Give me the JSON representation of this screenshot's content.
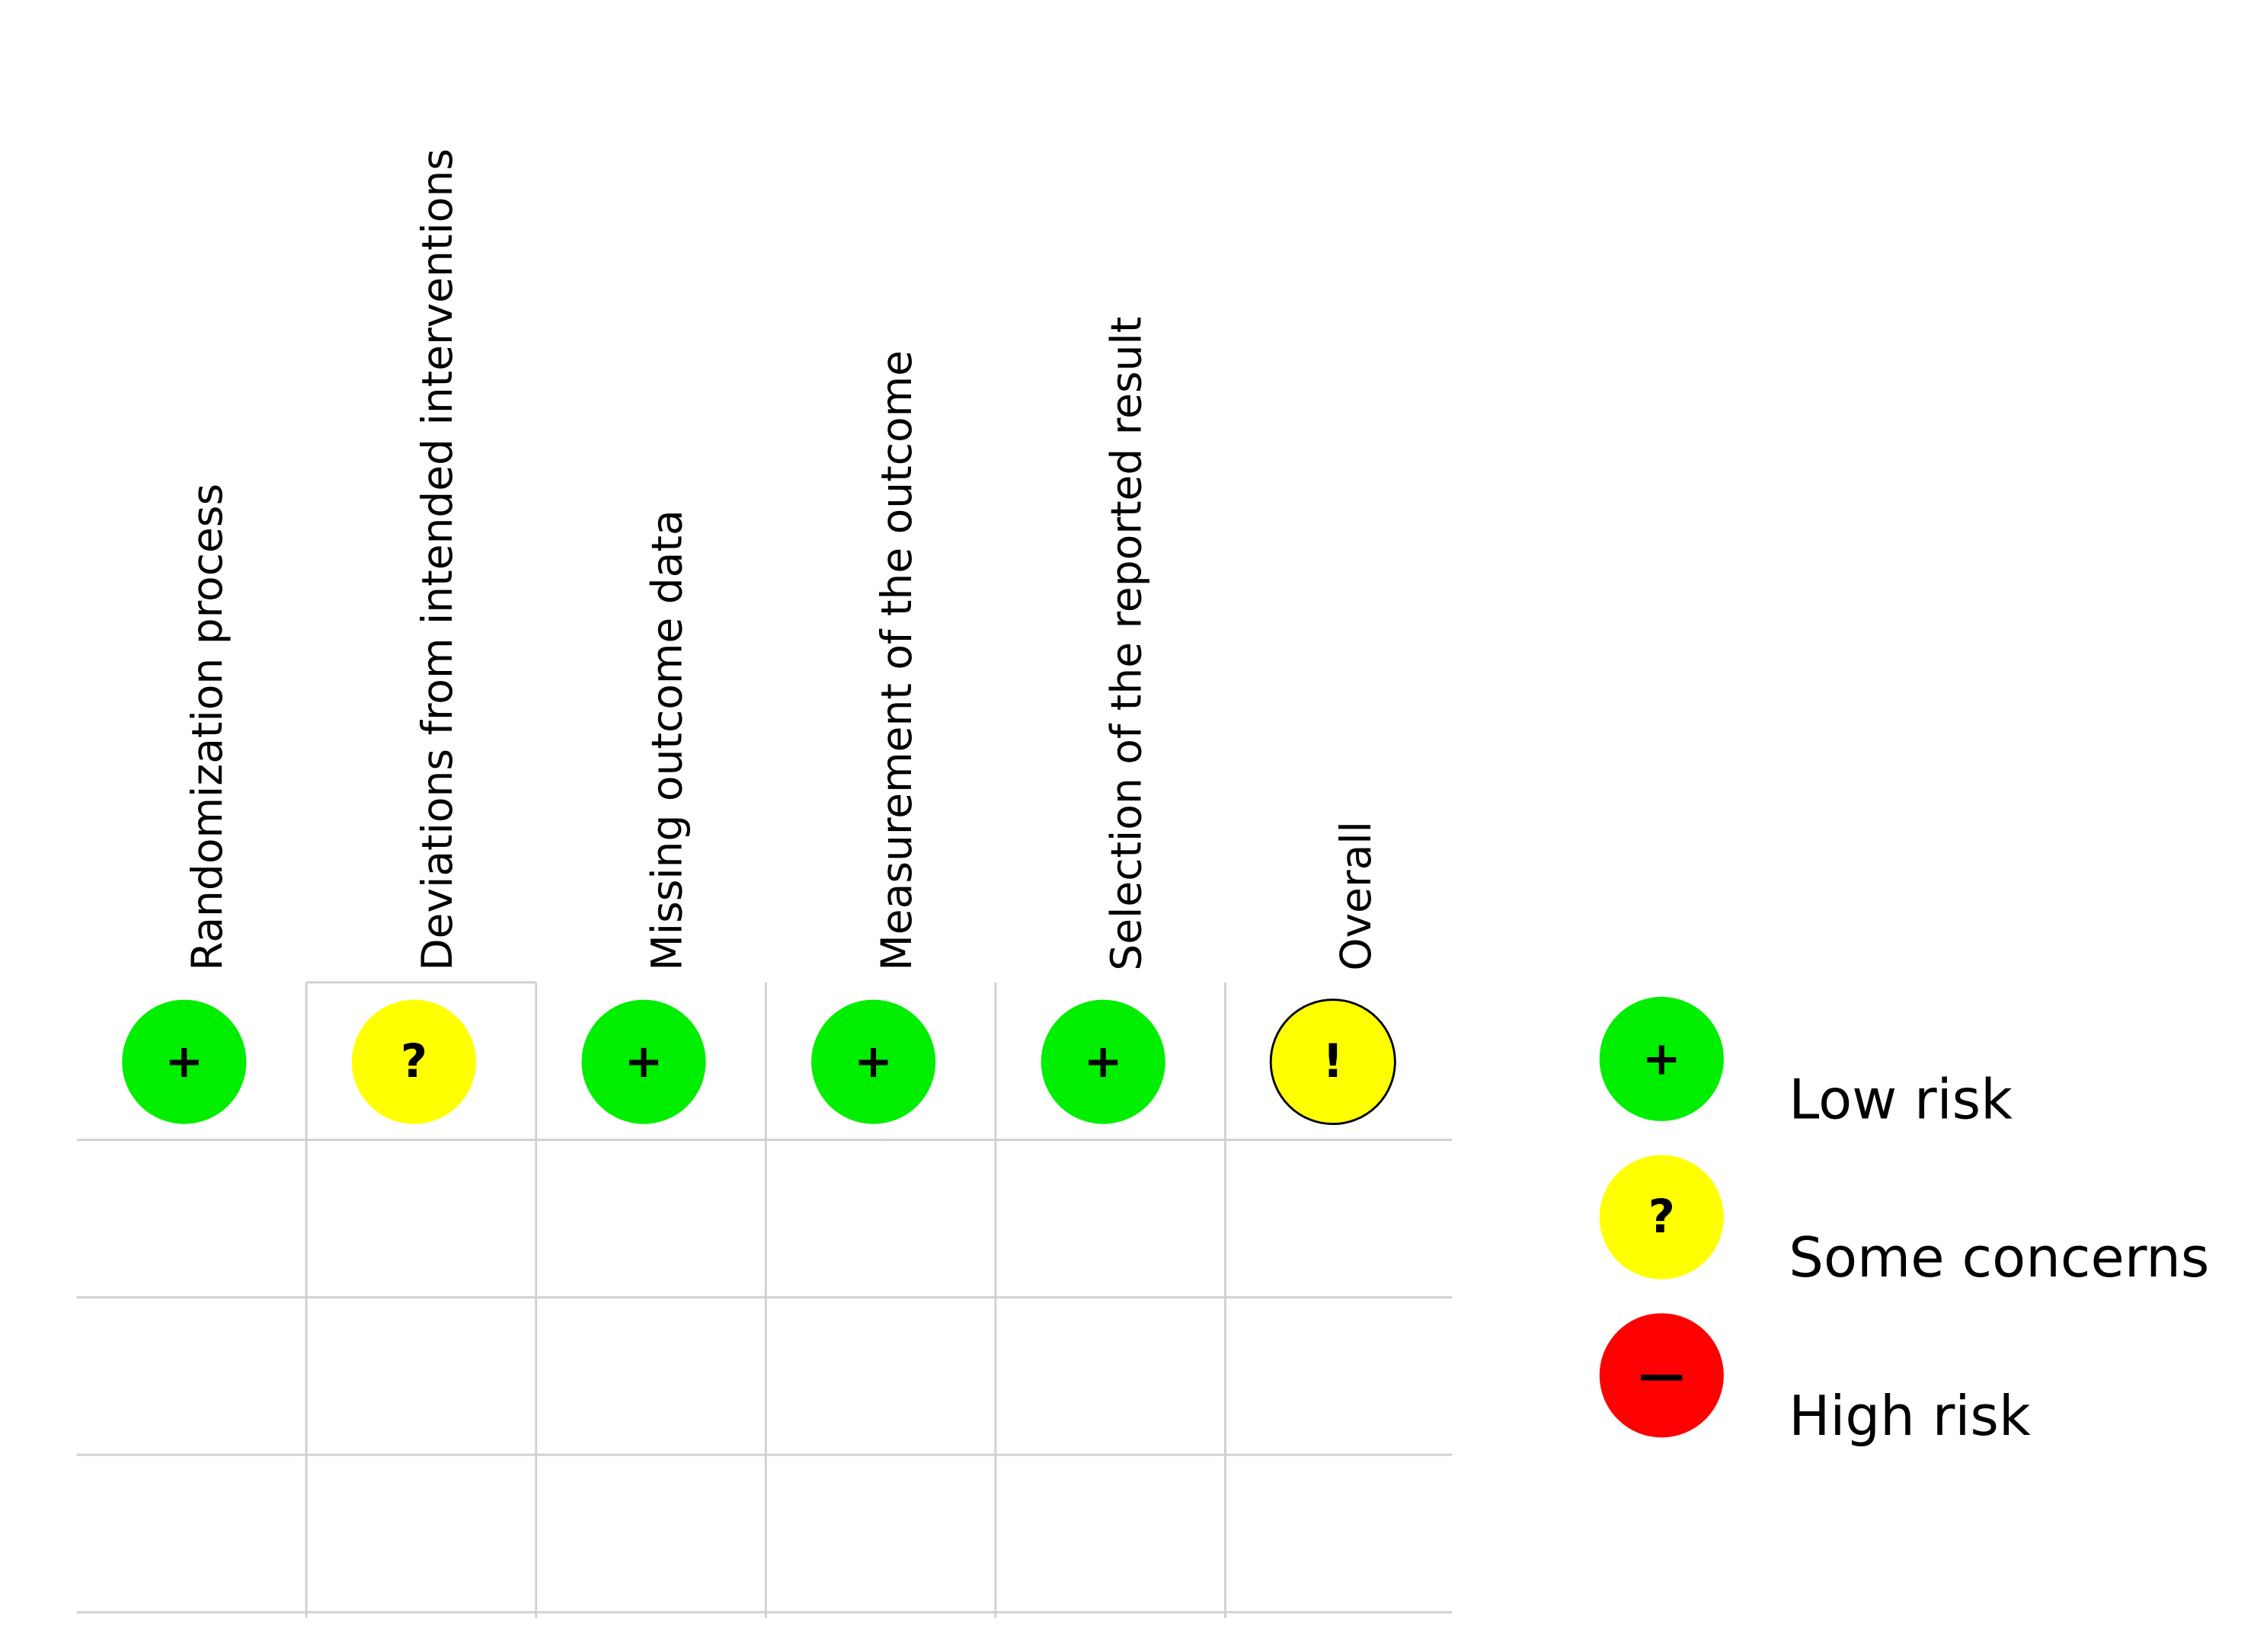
{
  "columns": [
    {
      "header": "Randomization process",
      "symbol": "+",
      "color": "#00ee00",
      "outlined": false
    },
    {
      "header": "Deviations from intended interventions",
      "symbol": "?",
      "color": "#ffff00",
      "outlined": false
    },
    {
      "header": "Missing outcome data",
      "symbol": "+",
      "color": "#00ee00",
      "outlined": false
    },
    {
      "header": "Measurement of the outcome",
      "symbol": "+",
      "color": "#00ee00",
      "outlined": false
    },
    {
      "header": "Selection of the reported result",
      "symbol": "+",
      "color": "#00ee00",
      "outlined": false
    },
    {
      "header": "Overall",
      "symbol": "!",
      "color": "#ffff00",
      "outlined": true
    }
  ],
  "legend": [
    {
      "symbol": "+",
      "label": "Low risk",
      "color": "#00ee00"
    },
    {
      "symbol": "?",
      "label": "Some concerns",
      "color": "#ffff00"
    },
    {
      "symbol": "—",
      "label": "High risk",
      "color": "#ff0000"
    }
  ]
}
